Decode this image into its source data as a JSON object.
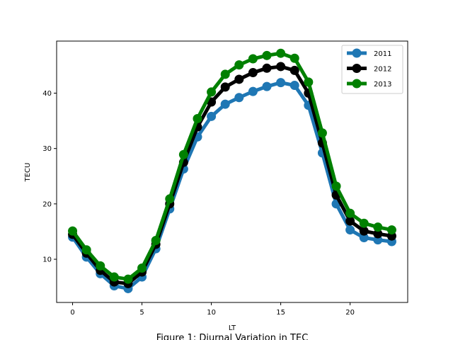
{
  "chart_data": {
    "type": "line",
    "caption": "Figure 1: Diurnal Variation in TEC",
    "xlabel": "LT",
    "ylabel": "TECU",
    "xlim": [
      -1.15,
      24.15
    ],
    "ylim": [
      2.2,
      49.4
    ],
    "xticks": [
      0,
      5,
      10,
      15,
      20
    ],
    "yticks": [
      10,
      20,
      30,
      40
    ],
    "legend_position": "top-right",
    "grid": false,
    "x": [
      0,
      1,
      2,
      3,
      4,
      5,
      6,
      7,
      8,
      9,
      10,
      11,
      12,
      13,
      14,
      15,
      16,
      17,
      18,
      19,
      20,
      21,
      22,
      23
    ],
    "series": [
      {
        "name": "2011",
        "color": "#1f77b4",
        "values": [
          14.0,
          10.4,
          7.4,
          5.2,
          4.7,
          6.8,
          11.9,
          19.1,
          26.3,
          32.1,
          35.8,
          38.0,
          39.2,
          40.3,
          41.2,
          41.9,
          41.4,
          37.8,
          29.2,
          20.0,
          15.3,
          13.9,
          13.5,
          13.2
        ]
      },
      {
        "name": "2012",
        "color": "#000000",
        "values": [
          14.5,
          11.1,
          8.0,
          5.9,
          5.6,
          7.7,
          12.7,
          20.0,
          27.5,
          33.9,
          38.4,
          41.1,
          42.5,
          43.7,
          44.5,
          44.8,
          44.1,
          40.0,
          31.0,
          21.6,
          16.9,
          15.1,
          14.6,
          14.2
        ]
      },
      {
        "name": "2013",
        "color": "#008000",
        "values": [
          15.1,
          11.7,
          8.8,
          6.8,
          6.4,
          8.4,
          13.4,
          20.9,
          28.9,
          35.4,
          40.2,
          43.4,
          45.1,
          46.2,
          46.8,
          47.2,
          46.3,
          42.0,
          32.8,
          23.2,
          18.3,
          16.5,
          15.8,
          15.3
        ]
      }
    ]
  }
}
